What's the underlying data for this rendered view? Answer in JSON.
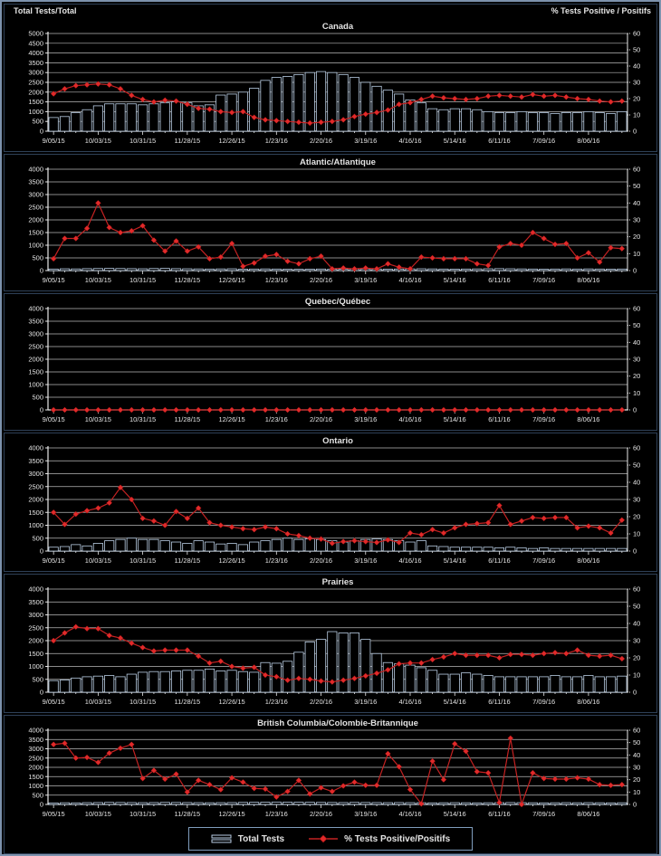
{
  "axis_labels": {
    "left": "Total Tests/Total",
    "right": "% Tests Positive / Positifs"
  },
  "legend": {
    "bar_label": "Total Tests",
    "line_label": "% Tests Positive/Positifs"
  },
  "colors": {
    "background": "#000000",
    "text": "#e4e4e4",
    "grid": "#b8b8b8",
    "axis": "#e8e8e8",
    "bar_fill": "#000000",
    "bar_outline": "#b9cde3",
    "line": "#c42222",
    "marker": "#e12a2a",
    "marker_edge": "#8f1010"
  },
  "x_tick_labels": [
    "9/05/15",
    "10/03/15",
    "10/31/15",
    "11/28/15",
    "12/26/15",
    "1/23/16",
    "2/20/16",
    "3/19/16",
    "4/16/16",
    "5/14/16",
    "6/11/16",
    "7/09/16",
    "8/06/16"
  ],
  "weeks": [
    "9/05/15",
    "9/12/15",
    "9/19/15",
    "9/26/15",
    "10/03/15",
    "10/10/15",
    "10/17/15",
    "10/24/15",
    "10/31/15",
    "11/07/15",
    "11/14/15",
    "11/21/15",
    "11/28/15",
    "12/05/15",
    "12/12/15",
    "12/19/15",
    "12/26/15",
    "1/02/16",
    "1/09/16",
    "1/16/16",
    "1/23/16",
    "1/30/16",
    "2/06/16",
    "2/13/16",
    "2/20/16",
    "2/27/16",
    "3/05/16",
    "3/12/16",
    "3/19/16",
    "3/26/16",
    "4/02/16",
    "4/09/16",
    "4/16/16",
    "4/23/16",
    "4/30/16",
    "5/07/16",
    "5/14/16",
    "5/21/16",
    "5/28/16",
    "6/04/16",
    "6/11/16",
    "6/18/16",
    "6/25/16",
    "7/02/16",
    "7/09/16",
    "7/16/16",
    "7/23/16",
    "7/30/16",
    "8/06/16",
    "8/13/16",
    "8/20/16",
    "8/27/16"
  ],
  "chart_data": [
    {
      "type": "bar+line",
      "title": "Canada",
      "left_axis": {
        "label": "Total Tests/Total",
        "min": 0,
        "max": 5000,
        "step": 500
      },
      "right_axis": {
        "label": "% Tests Positive / Positifs",
        "min": 0,
        "max": 60,
        "step": 10
      },
      "series": [
        {
          "name": "Total Tests",
          "type": "bar",
          "axis": "left",
          "values": [
            700,
            750,
            950,
            1100,
            1300,
            1400,
            1400,
            1400,
            1350,
            1400,
            1450,
            1500,
            1450,
            1300,
            1350,
            1850,
            1900,
            2000,
            2200,
            2600,
            2750,
            2800,
            2900,
            3000,
            3050,
            3000,
            2900,
            2750,
            2500,
            2300,
            2100,
            1900,
            1600,
            1450,
            1150,
            1100,
            1150,
            1150,
            1100,
            1000,
            950,
            950,
            1000,
            950,
            950,
            900,
            950,
            950,
            1000,
            950,
            900,
            1000
          ]
        },
        {
          "name": "% Tests Positive/Positifs",
          "type": "line",
          "axis": "right",
          "values": [
            23,
            26,
            28,
            28.5,
            29,
            28.5,
            26,
            22,
            19.5,
            18,
            19,
            18.5,
            16.5,
            14,
            13.5,
            12,
            11.5,
            12,
            8.5,
            7,
            6.5,
            6,
            5.5,
            5,
            5.5,
            6,
            7,
            9,
            10.5,
            11.5,
            13,
            16.5,
            17.5,
            19.5,
            21.5,
            20.5,
            20,
            19.5,
            20,
            21.5,
            22,
            21.5,
            21,
            22.5,
            21.5,
            22,
            21,
            20,
            19.5,
            18.5,
            18,
            18.5
          ]
        }
      ]
    },
    {
      "type": "bar+line",
      "title": "Atlantic/Atlantique",
      "left_axis": {
        "min": 0,
        "max": 4000,
        "step": 500
      },
      "right_axis": {
        "min": 0,
        "max": 60,
        "step": 10
      },
      "series": [
        {
          "name": "Total Tests",
          "type": "bar",
          "axis": "left",
          "values": [
            60,
            70,
            65,
            75,
            80,
            85,
            80,
            75,
            70,
            80,
            85,
            75,
            70,
            65,
            60,
            65,
            70,
            55,
            60,
            65,
            60,
            55,
            50,
            55,
            60,
            50,
            55,
            60,
            65,
            60,
            55,
            60,
            65,
            70,
            65,
            60,
            55,
            60,
            65,
            70,
            75,
            70,
            65,
            60,
            55,
            60,
            65,
            60,
            65,
            60,
            55,
            60
          ]
        },
        {
          "name": "% Tests Positive/Positifs",
          "type": "line",
          "axis": "right",
          "values": [
            7,
            19,
            19,
            25,
            40,
            25.5,
            22.5,
            23.5,
            26.5,
            18,
            11.5,
            17.5,
            11.5,
            14,
            7,
            8,
            16,
            2.5,
            4.5,
            8.5,
            9.5,
            5.5,
            4,
            7,
            8.5,
            1,
            1.5,
            1,
            1.5,
            1,
            4,
            2,
            1,
            8,
            7.5,
            7,
            7,
            7,
            4,
            3,
            14,
            16,
            15,
            22.5,
            19,
            15.5,
            16,
            7.5,
            10.5,
            5,
            13.5,
            13
          ]
        }
      ]
    },
    {
      "type": "bar+line",
      "title": "Quebec/Québec",
      "left_axis": {
        "min": 0,
        "max": 4000,
        "step": 500
      },
      "right_axis": {
        "min": 0,
        "max": 60,
        "step": 10
      },
      "series": [
        {
          "name": "Total Tests",
          "type": "bar",
          "axis": "left",
          "values": [
            0,
            0,
            0,
            0,
            0,
            0,
            0,
            0,
            0,
            0,
            0,
            0,
            0,
            0,
            0,
            0,
            0,
            0,
            0,
            0,
            0,
            0,
            0,
            0,
            0,
            0,
            0,
            0,
            0,
            0,
            0,
            0,
            0,
            0,
            0,
            0,
            0,
            0,
            0,
            0,
            0,
            0,
            0,
            0,
            0,
            0,
            0,
            0,
            0,
            0,
            0,
            0
          ]
        },
        {
          "name": "% Tests Positive/Positifs",
          "type": "line",
          "axis": "right",
          "values": [
            0,
            0,
            0,
            0,
            0,
            0,
            0,
            0,
            0,
            0,
            0,
            0,
            0,
            0,
            0,
            0,
            0,
            0,
            0,
            0,
            0,
            0,
            0,
            0,
            0,
            0,
            0,
            0,
            0,
            0,
            0,
            0,
            0,
            0,
            0,
            0,
            0,
            0,
            0,
            0,
            0,
            0,
            0,
            0,
            0,
            0,
            0,
            0,
            0,
            0,
            0,
            0
          ]
        }
      ]
    },
    {
      "type": "bar+line",
      "title": "Ontario",
      "left_axis": {
        "min": 0,
        "max": 4000,
        "step": 500
      },
      "right_axis": {
        "min": 0,
        "max": 60,
        "step": 10
      },
      "series": [
        {
          "name": "Total Tests",
          "type": "bar",
          "axis": "left",
          "values": [
            150,
            175,
            250,
            200,
            300,
            400,
            450,
            500,
            450,
            450,
            400,
            350,
            300,
            400,
            350,
            275,
            300,
            250,
            350,
            400,
            450,
            500,
            450,
            475,
            450,
            400,
            350,
            400,
            450,
            475,
            450,
            400,
            350,
            400,
            200,
            175,
            150,
            150,
            150,
            150,
            125,
            150,
            125,
            100,
            125,
            100,
            100,
            100,
            100,
            100,
            100,
            100
          ]
        },
        {
          "name": "% Tests Positive/Positifs",
          "type": "line",
          "axis": "right",
          "values": [
            22.5,
            15.5,
            21.5,
            23.5,
            25,
            28,
            37,
            30,
            19,
            17.5,
            15,
            23,
            19,
            25,
            16.5,
            15,
            14,
            13,
            12.5,
            14,
            13,
            10,
            9,
            7.5,
            7,
            4.5,
            5.5,
            6,
            5.5,
            5,
            6.5,
            5,
            10.5,
            9.5,
            12.5,
            10.5,
            13.5,
            15.5,
            16,
            16.5,
            26.5,
            15.5,
            17.5,
            19.5,
            19,
            19.5,
            19.5,
            13.5,
            14.5,
            13.5,
            10.5,
            18
          ]
        }
      ]
    },
    {
      "type": "bar+line",
      "title": "Prairies",
      "left_axis": {
        "min": 0,
        "max": 4000,
        "step": 500
      },
      "right_axis": {
        "min": 0,
        "max": 60,
        "step": 10
      },
      "series": [
        {
          "name": "Total Tests",
          "type": "bar",
          "axis": "left",
          "values": [
            450,
            475,
            550,
            600,
            625,
            650,
            600,
            700,
            775,
            800,
            800,
            825,
            850,
            850,
            900,
            825,
            850,
            800,
            775,
            1150,
            1125,
            1200,
            1550,
            1950,
            2050,
            2350,
            2300,
            2300,
            2050,
            1500,
            1150,
            1100,
            1050,
            950,
            850,
            700,
            700,
            750,
            700,
            650,
            600,
            600,
            600,
            600,
            600,
            650,
            600,
            600,
            650,
            600,
            600,
            625
          ]
        },
        {
          "name": "% Tests Positive/Positifs",
          "type": "line",
          "axis": "right",
          "values": [
            30,
            34.5,
            38,
            37,
            37,
            33,
            31.5,
            28.5,
            26,
            24,
            24.5,
            24.5,
            24.5,
            21,
            17,
            18,
            15,
            14,
            14.5,
            10,
            9,
            7,
            8,
            7.5,
            6.5,
            6,
            7,
            8,
            9.5,
            11,
            13,
            16.5,
            17,
            17,
            19,
            20.5,
            22.5,
            21.5,
            21.5,
            21.5,
            20,
            22,
            22,
            21.5,
            22.5,
            23,
            22.5,
            24.5,
            21.5,
            21,
            21.5,
            19.5
          ]
        }
      ]
    },
    {
      "type": "bar+line",
      "title": "British Columbia/Colombie-Britannique",
      "left_axis": {
        "min": 0,
        "max": 4000,
        "step": 500
      },
      "right_axis": {
        "min": 0,
        "max": 60,
        "step": 10
      },
      "series": [
        {
          "name": "Total Tests",
          "type": "bar",
          "axis": "left",
          "values": [
            80,
            90,
            85,
            95,
            100,
            110,
            105,
            100,
            95,
            100,
            110,
            105,
            100,
            95,
            90,
            95,
            100,
            110,
            115,
            120,
            130,
            125,
            120,
            115,
            110,
            105,
            100,
            110,
            105,
            100,
            95,
            100,
            95,
            90,
            85,
            90,
            95,
            90,
            85,
            90,
            95,
            100,
            95,
            90,
            85,
            90,
            95,
            90,
            95,
            90,
            85,
            90
          ]
        },
        {
          "name": "% Tests Positive/Positifs",
          "type": "line",
          "axis": "right",
          "values": [
            48.5,
            49.5,
            37.5,
            38,
            34,
            41.5,
            45.5,
            48.5,
            21,
            27.5,
            20.5,
            24.5,
            10,
            19.5,
            16,
            12,
            21.5,
            18,
            13,
            12.5,
            6,
            10.5,
            19.5,
            8.5,
            13.5,
            10.5,
            15,
            18,
            15.5,
            15.5,
            41,
            30.5,
            12,
            0.5,
            35,
            20,
            49,
            43,
            26.5,
            25.5,
            1.5,
            53.5,
            0,
            25.5,
            21,
            20.5,
            20.5,
            21.5,
            20.5,
            16,
            15.5,
            16
          ]
        }
      ]
    }
  ]
}
